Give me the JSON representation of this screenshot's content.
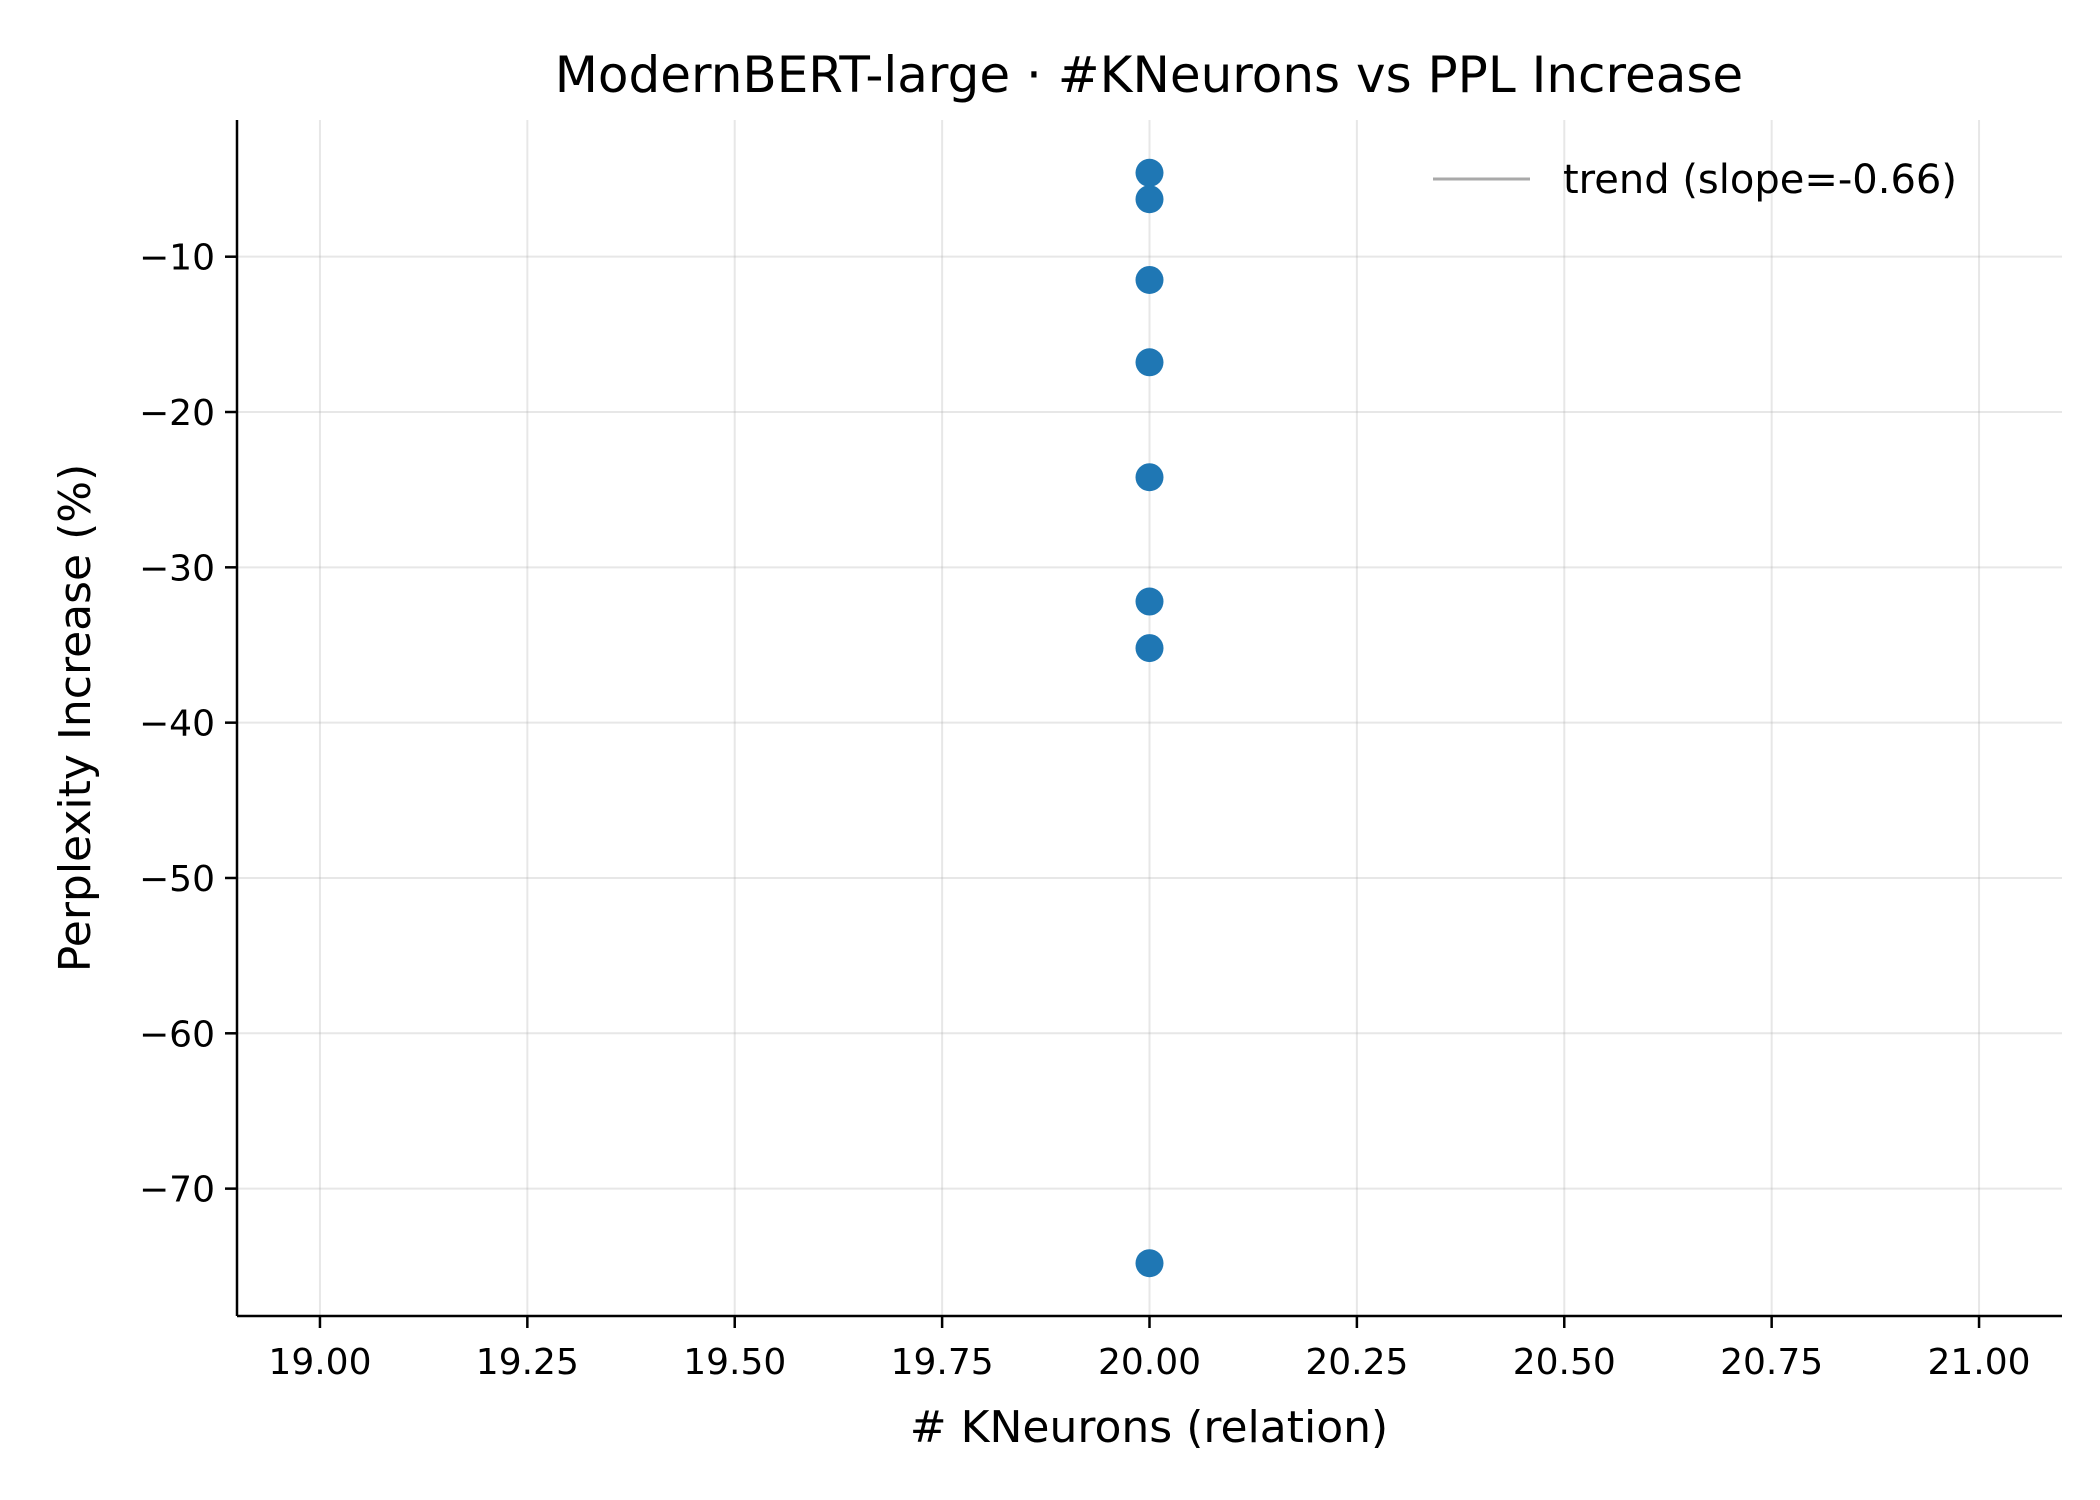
{
  "chart_data": {
    "type": "scatter",
    "title": "ModernBERT-large · #KNeurons vs PPL Increase",
    "xlabel": "# KNeurons (relation)",
    "ylabel": "Perplexity Increase (%)",
    "xlim": [
      18.9,
      21.1
    ],
    "ylim": [
      -78.2,
      -1.2
    ],
    "xticks": [
      19.0,
      19.25,
      19.5,
      19.75,
      20.0,
      20.25,
      20.5,
      20.75,
      21.0
    ],
    "xtick_labels": [
      "19.00",
      "19.25",
      "19.50",
      "19.75",
      "20.00",
      "20.25",
      "20.50",
      "20.75",
      "21.00"
    ],
    "yticks": [
      -10,
      -20,
      -30,
      -40,
      -50,
      -60,
      -70
    ],
    "ytick_labels": [
      "−10",
      "−20",
      "−30",
      "−40",
      "−50",
      "−60",
      "−70"
    ],
    "grid": true,
    "legend_position": "top-right",
    "series": [
      {
        "color": "#1f77b4",
        "points": [
          {
            "x": 20,
            "y": -4.6
          },
          {
            "x": 20,
            "y": -6.3
          },
          {
            "x": 20,
            "y": -11.5
          },
          {
            "x": 20,
            "y": -16.8
          },
          {
            "x": 20,
            "y": -24.2
          },
          {
            "x": 20,
            "y": -32.2
          },
          {
            "x": 20,
            "y": -35.2
          },
          {
            "x": 20,
            "y": -74.8
          }
        ]
      }
    ],
    "trend": {
      "label": "trend (slope=-0.66)",
      "color": "#a9a9a9"
    }
  }
}
